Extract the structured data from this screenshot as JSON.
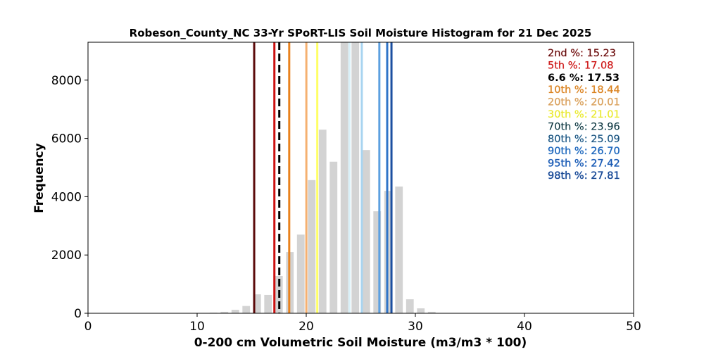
{
  "chart_data": {
    "type": "bar",
    "title": "Robeson_County_NC 33-Yr SPoRT-LIS Soil Moisture Histogram for 21 Dec 2025",
    "xlabel": "0-200 cm Volumetric Soil Moisture (m3/m3 * 100)",
    "ylabel": "Frequency",
    "xlim": [
      0,
      50
    ],
    "ylim": [
      0,
      9300
    ],
    "x_ticks": [
      0,
      10,
      20,
      30,
      40,
      50
    ],
    "y_ticks": [
      0,
      2000,
      4000,
      6000,
      8000
    ],
    "bin_width": 1.0,
    "bins": [
      {
        "center": 11.5,
        "value": 20
      },
      {
        "center": 12.5,
        "value": 50
      },
      {
        "center": 13.5,
        "value": 120
      },
      {
        "center": 14.5,
        "value": 250
      },
      {
        "center": 15.5,
        "value": 650
      },
      {
        "center": 16.5,
        "value": 630
      },
      {
        "center": 17.5,
        "value": 1280
      },
      {
        "center": 18.5,
        "value": 2100
      },
      {
        "center": 19.5,
        "value": 2700
      },
      {
        "center": 20.5,
        "value": 4570
      },
      {
        "center": 21.5,
        "value": 6300
      },
      {
        "center": 22.5,
        "value": 5200
      },
      {
        "center": 23.5,
        "value": 9300
      },
      {
        "center": 24.5,
        "value": 9300
      },
      {
        "center": 25.5,
        "value": 5600
      },
      {
        "center": 26.5,
        "value": 3500
      },
      {
        "center": 27.5,
        "value": 4200
      },
      {
        "center": 28.5,
        "value": 4350
      },
      {
        "center": 29.5,
        "value": 480
      },
      {
        "center": 30.5,
        "value": 170
      },
      {
        "center": 31.5,
        "value": 50
      }
    ],
    "percentile_lines": [
      {
        "label": "2nd %: 15.23",
        "value": 15.23,
        "color": "#5c0a0a",
        "style": "solid"
      },
      {
        "label": "5th %: 17.08",
        "value": 17.08,
        "color": "#cc1010",
        "style": "solid"
      },
      {
        "label": "6.6 %: 17.53",
        "value": 17.53,
        "color": "#000000",
        "style": "dashed"
      },
      {
        "label": "10th %: 18.44",
        "value": 18.44,
        "color": "#e8821e",
        "style": "solid"
      },
      {
        "label": "20th %: 20.01",
        "value": 20.01,
        "color": "#f5b070",
        "style": "solid"
      },
      {
        "label": "30th %: 21.01",
        "value": 21.01,
        "color": "#ffff66",
        "style": "solid"
      },
      {
        "label": "70th %: 23.96",
        "value": 23.96,
        "color": "#d8f0f8",
        "style": "solid"
      },
      {
        "label": "80th %: 25.09",
        "value": 25.09,
        "color": "#a8d4f0",
        "style": "solid"
      },
      {
        "label": "90th %: 26.70",
        "value": 26.7,
        "color": "#5ca0e0",
        "style": "solid"
      },
      {
        "label": "95th %: 27.42",
        "value": 27.42,
        "color": "#2f74c8",
        "style": "solid"
      },
      {
        "label": "98th %: 27.81",
        "value": 27.81,
        "color": "#1b4fa0",
        "style": "solid"
      }
    ],
    "label_colors": [
      "#5c0a0a",
      "#cc1010",
      "#000000",
      "#d9821e",
      "#d8a060",
      "#e6e632",
      "#0e2f36",
      "#1c4f78",
      "#1f63b8",
      "#1a58b0",
      "#16468f"
    ],
    "label_outline_colors": [
      "#e8a0a0",
      "#f0b0b0",
      "#ffffff",
      "#f0c090",
      "#f0d0a0",
      "#ffff99",
      "#c8e8f0",
      "#a8d4f0",
      "#80b8ea",
      "#6ea0e0",
      "#6a90d0"
    ],
    "bar_color": "#d3d3d3",
    "legend_position": "top-right",
    "grid": false
  }
}
